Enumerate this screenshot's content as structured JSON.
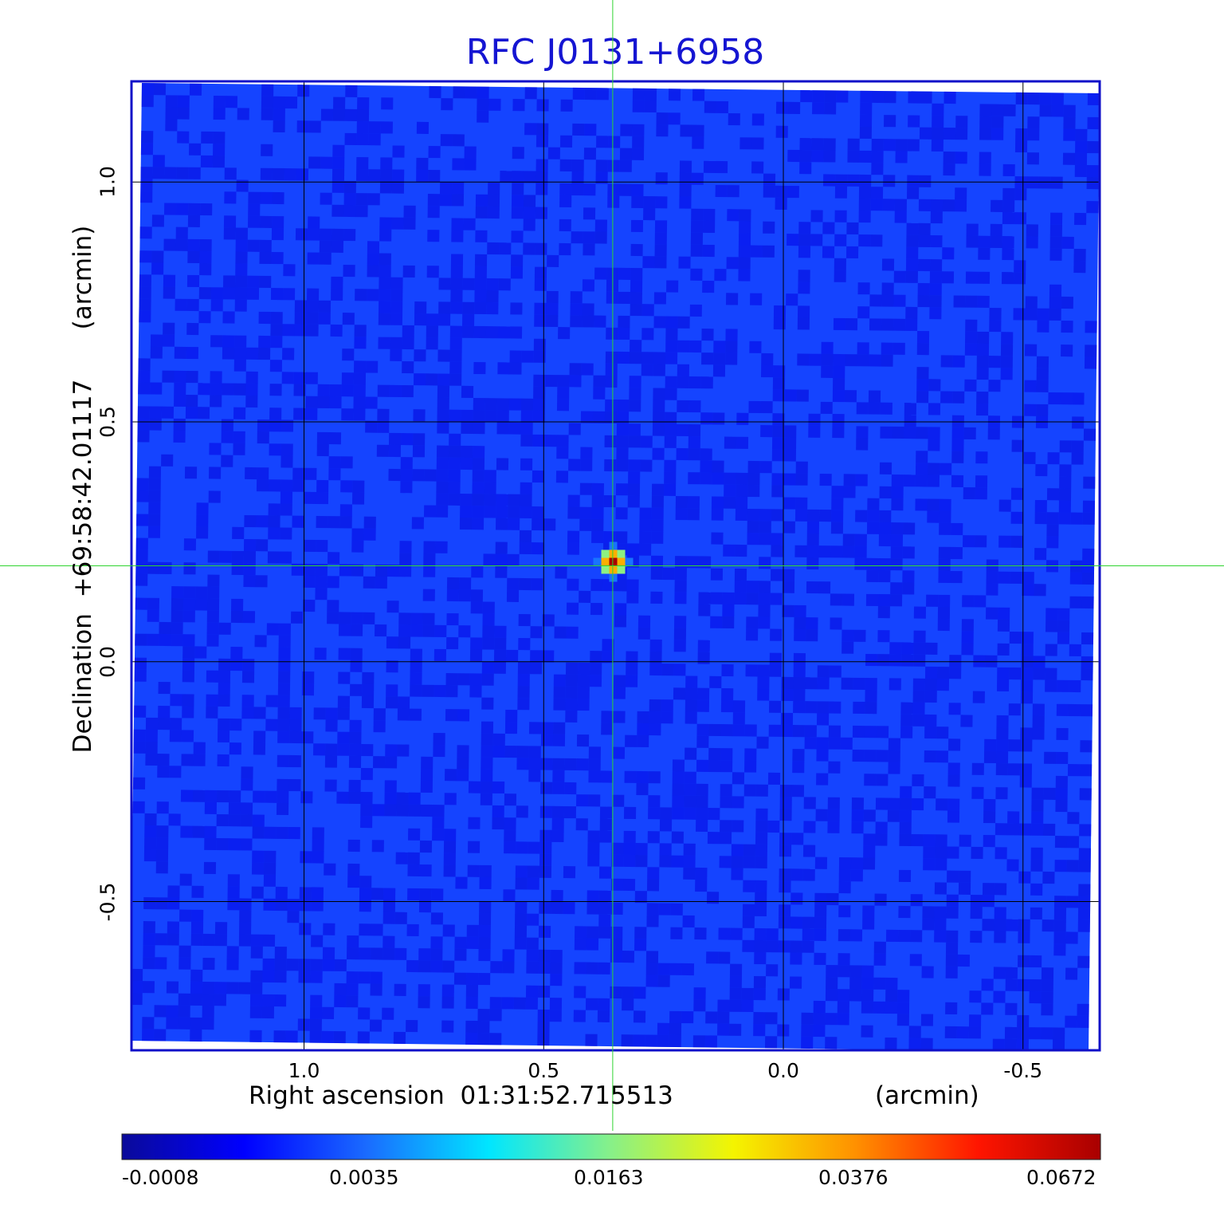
{
  "chart_data": {
    "type": "heatmap",
    "title": "RFC J0131+6958",
    "xlabel": "Right ascension  01:31:52.715513",
    "x_unit": "(arcmin)",
    "ylabel": "Declination  +69:58:42.01117",
    "y_unit": "(arcmin)",
    "x_axis_direction": "decreasing-left-to-right",
    "xlim": [
      1.36,
      -0.66
    ],
    "ylim": [
      -0.81,
      1.21
    ],
    "x_ticks": [
      1.0,
      0.5,
      0.0,
      -0.5
    ],
    "x_tick_labels": [
      "1.0",
      "0.5",
      "0.0",
      "-0.5"
    ],
    "y_ticks": [
      1.0,
      0.5,
      0.0,
      -0.5
    ],
    "y_tick_labels": [
      "1.0",
      "0.5",
      "0.0",
      "-0.5"
    ],
    "grid": true,
    "grid_color": "#000000",
    "crosshair": {
      "x": 0.356,
      "y": 0.2,
      "color": "#2fd42f"
    },
    "source_peak": {
      "x": 0.34,
      "y": 0.2,
      "value": 0.0672
    },
    "background_level": 0.0,
    "colormap": "jet",
    "colorbar": {
      "tick_values": [
        -0.0008,
        0.0035,
        0.0163,
        0.0376,
        0.0672
      ],
      "tick_labels": [
        "-0.0008",
        "0.0035",
        "0.0163",
        "0.0376",
        "0.0672"
      ],
      "stops": [
        "#0a0a9a",
        "#0000ff",
        "#1a6bff",
        "#00e6ff",
        "#88f088",
        "#f4f400",
        "#ff9000",
        "#ff1500",
        "#a80000"
      ]
    },
    "colors": {
      "frame": "#1010c8",
      "title": "#1515d2",
      "field": "#1544ff"
    }
  }
}
